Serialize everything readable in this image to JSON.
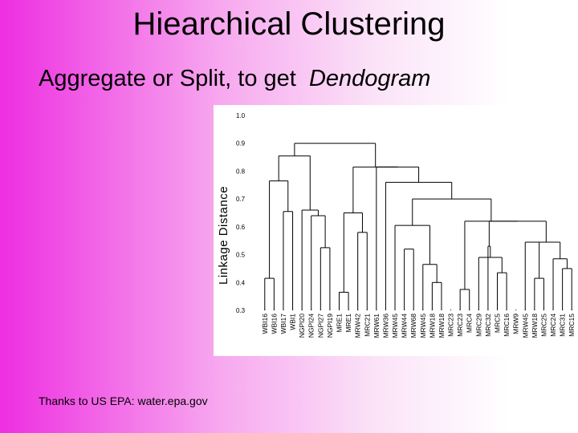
{
  "slide": {
    "title": "Hiearchical Clustering",
    "subtitle_prefix": "Aggregate or Split, to get",
    "subtitle_emph": "Dendogram",
    "credit": "Thanks to US EPA:  water.epa.gov"
  },
  "chart_data": {
    "type": "dendrogram",
    "ylabel": "Linkage Distance",
    "ylim": [
      0.3,
      1.0
    ],
    "yticks": [
      "1.0",
      "0.9",
      "0.8",
      "0.7",
      "0.6",
      "0.5",
      "0.4",
      "0.3"
    ],
    "leaves": [
      "WBI16",
      "WBI16",
      "WBI17",
      "WBI1",
      "NGPI20",
      "NGPI24",
      "NGPI27",
      "NGPI19",
      "MRE1",
      "MRE1",
      "MRW42",
      "MRC21",
      "MRW61",
      "MRW36",
      "MRW45",
      "MRW44",
      "MRW68",
      "MRW45",
      "MRW18",
      "MRW18",
      "MRC23",
      "MRC23",
      "MRC4",
      "MRC29",
      "MRC32",
      "MRC5",
      "MRC16",
      "MRW9",
      "MRW45",
      "MRW18",
      "MRC25",
      "MRC24",
      "MRC31",
      "MRC15"
    ],
    "merges": [
      {
        "a": 0,
        "b": 1,
        "h": 0.415
      },
      {
        "a": 2,
        "b": 3,
        "h": 0.655
      },
      {
        "a": 6,
        "b": 7,
        "h": 0.525
      },
      {
        "a": 5,
        "b": 6.5,
        "h": 0.64
      },
      {
        "a": 4,
        "b": 5.75,
        "h": 0.66
      },
      {
        "a": 0.5,
        "b": 2.5,
        "h": 0.765
      },
      {
        "a": 1.5,
        "b": 4.875,
        "h": 0.855
      },
      {
        "a": 10,
        "b": 11,
        "h": 0.58
      },
      {
        "a": 8,
        "b": 9,
        "h": 0.365
      },
      {
        "a": 8.5,
        "b": 10.5,
        "h": 0.65
      },
      {
        "a": 15,
        "b": 16,
        "h": 0.52
      },
      {
        "a": 18,
        "b": 19,
        "h": 0.4
      },
      {
        "a": 17,
        "b": 18.5,
        "h": 0.465
      },
      {
        "a": 14,
        "b": 17.75,
        "h": 0.605
      },
      {
        "a": 21,
        "b": 22,
        "h": 0.375
      },
      {
        "a": 25,
        "b": 26,
        "h": 0.435
      },
      {
        "a": 23,
        "b": 25.5,
        "h": 0.49
      },
      {
        "a": 24,
        "b": 24.25,
        "h": 0.53
      },
      {
        "a": 29,
        "b": 30,
        "h": 0.415
      },
      {
        "a": 28,
        "b": 29.5,
        "h": 0.545
      },
      {
        "a": 32,
        "b": 33,
        "h": 0.45
      },
      {
        "a": 31,
        "b": 32.5,
        "h": 0.485
      },
      {
        "a": 28.75,
        "b": 31.75,
        "h": 0.545
      },
      {
        "a": 24.125,
        "b": 30.25,
        "h": 0.62
      },
      {
        "a": 21.5,
        "b": 27.1875,
        "h": 0.62
      },
      {
        "a": 15.875,
        "b": 24.34,
        "h": 0.7
      },
      {
        "a": 13,
        "b": 20.1,
        "h": 0.76
      },
      {
        "a": 12,
        "b": 16.55,
        "h": 0.815
      },
      {
        "a": 9.5,
        "b": 14.3,
        "h": 0.815
      },
      {
        "a": 3.2,
        "b": 11.9,
        "h": 0.9
      }
    ]
  }
}
